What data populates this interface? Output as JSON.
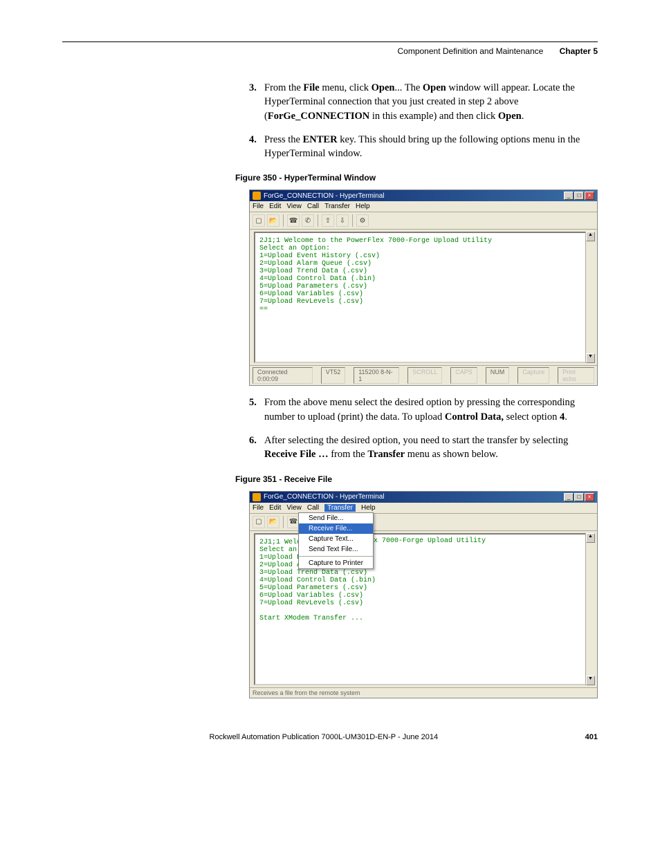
{
  "header": {
    "section_title": "Component Definition and Maintenance",
    "chapter_label": "Chapter 5"
  },
  "steps_a": [
    {
      "num": "3.",
      "parts": [
        "From the ",
        {
          "b": "File"
        },
        " menu, click ",
        {
          "b": "Open"
        },
        "... The ",
        {
          "b": "Open"
        },
        " window will appear. Locate the HyperTerminal connection that you just created in step 2 above (",
        {
          "b": "ForGe_CONNECTION"
        },
        " in this example) and then click ",
        {
          "b": "Open"
        },
        "."
      ]
    },
    {
      "num": "4.",
      "parts": [
        "Press the ",
        {
          "b": "ENTER"
        },
        " key. This should bring up the following options menu in the HyperTerminal window."
      ]
    }
  ],
  "figure350": {
    "caption": "Figure 350 - HyperTerminal Window",
    "title": "ForGe_CONNECTION - HyperTerminal",
    "menus": [
      "File",
      "Edit",
      "View",
      "Call",
      "Transfer",
      "Help"
    ],
    "terminal_lines": [
      "2J1;1 Welcome to the PowerFlex 7000-Forge Upload Utility",
      "Select an Option:",
      "1=Upload Event History (.csv)",
      "2=Upload Alarm Queue (.csv)",
      "3=Upload Trend Data (.csv)",
      "4=Upload Control Data (.bin)",
      "5=Upload Parameters (.csv)",
      "6=Upload Variables (.csv)",
      "7=Upload RevLevels (.csv)",
      "=="
    ],
    "status": {
      "connected": "Connected 0:00:09",
      "emul": "VT52",
      "baud": "115200 8-N-1",
      "scroll": "SCROLL",
      "caps": "CAPS",
      "num": "NUM",
      "capt": "Capture",
      "echo": "Print echo"
    }
  },
  "steps_b": [
    {
      "num": "5.",
      "parts": [
        "From the above menu select the desired option by pressing the corresponding number to upload (print) the data. To upload ",
        {
          "b": "Control Data,"
        },
        " select option ",
        {
          "b": "4"
        },
        "."
      ]
    },
    {
      "num": "6.",
      "parts": [
        "After selecting the desired option, you need to start the transfer by selecting ",
        {
          "b": "Receive File …"
        },
        " from the ",
        {
          "b": "Transfer"
        },
        " menu as shown below."
      ]
    }
  ],
  "figure351": {
    "caption": "Figure 351 - Receive File",
    "title": "ForGe_CONNECTION - HyperTerminal",
    "menus": [
      "File",
      "Edit",
      "View",
      "Call",
      "Transfer",
      "Help"
    ],
    "dropdown": {
      "items": [
        "Send File...",
        "Receive File...",
        "Capture Text...",
        "Send Text File...",
        "",
        "Capture to Printer"
      ],
      "selected_index": 1
    },
    "terminal_lines_left": [
      "2J1;1 Welco",
      "Select an (",
      "1=Upload Ev",
      "2=Upload Alarm Queue (.csv)",
      "3=Upload Trend Data (.csv)",
      "4=Upload Control Data (.bin)",
      "5=Upload Parameters (.csv)",
      "6=Upload Variables (.csv)",
      "7=Upload RevLevels (.csv)",
      "",
      "Start XModem Transfer ..."
    ],
    "terminal_overflow_right": "werFlex 7000-Forge Upload Utility",
    "terminal_overflow_right2": "(.csv)",
    "status_text": "Receives a file from the remote system"
  },
  "footer": {
    "pub": "Rockwell Automation Publication 7000L-UM301D-EN-P - June 2014",
    "page": "401"
  },
  "colors": {
    "terminal_text": "#008000",
    "win_bg": "#ece9d8",
    "titlebar_start": "#0a246a",
    "titlebar_end": "#3a6ea5",
    "highlight": "#316ac5"
  }
}
